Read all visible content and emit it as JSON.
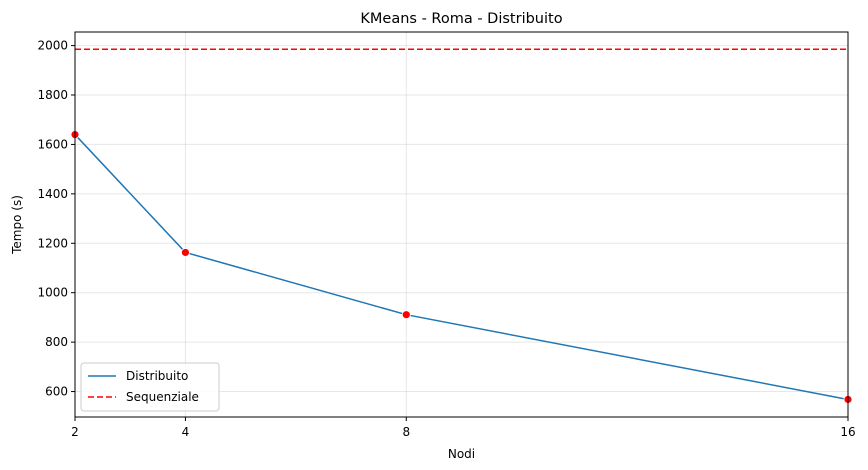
{
  "chart_data": {
    "type": "line",
    "title": "KMeans - Roma - Distribuito",
    "xlabel": "Nodi",
    "ylabel": "Tempo (s)",
    "x": [
      2,
      4,
      8,
      16
    ],
    "xlim": [
      2,
      16
    ],
    "ylim": [
      497,
      2055
    ],
    "xticks": [
      2,
      4,
      8,
      16
    ],
    "yticks": [
      600,
      800,
      1000,
      1200,
      1400,
      1600,
      1800,
      2000
    ],
    "grid": true,
    "legend_position": "lower-left",
    "series": [
      {
        "name": "Distribuito",
        "values": [
          1640,
          1163,
          911,
          568
        ],
        "color": "#1f77b4",
        "line_style": "solid",
        "marker": "circle",
        "marker_color": "#ff0000"
      },
      {
        "name": "Sequenziale",
        "type": "hline",
        "value": 1985,
        "color": "#ff0000",
        "line_style": "dashed"
      }
    ]
  }
}
